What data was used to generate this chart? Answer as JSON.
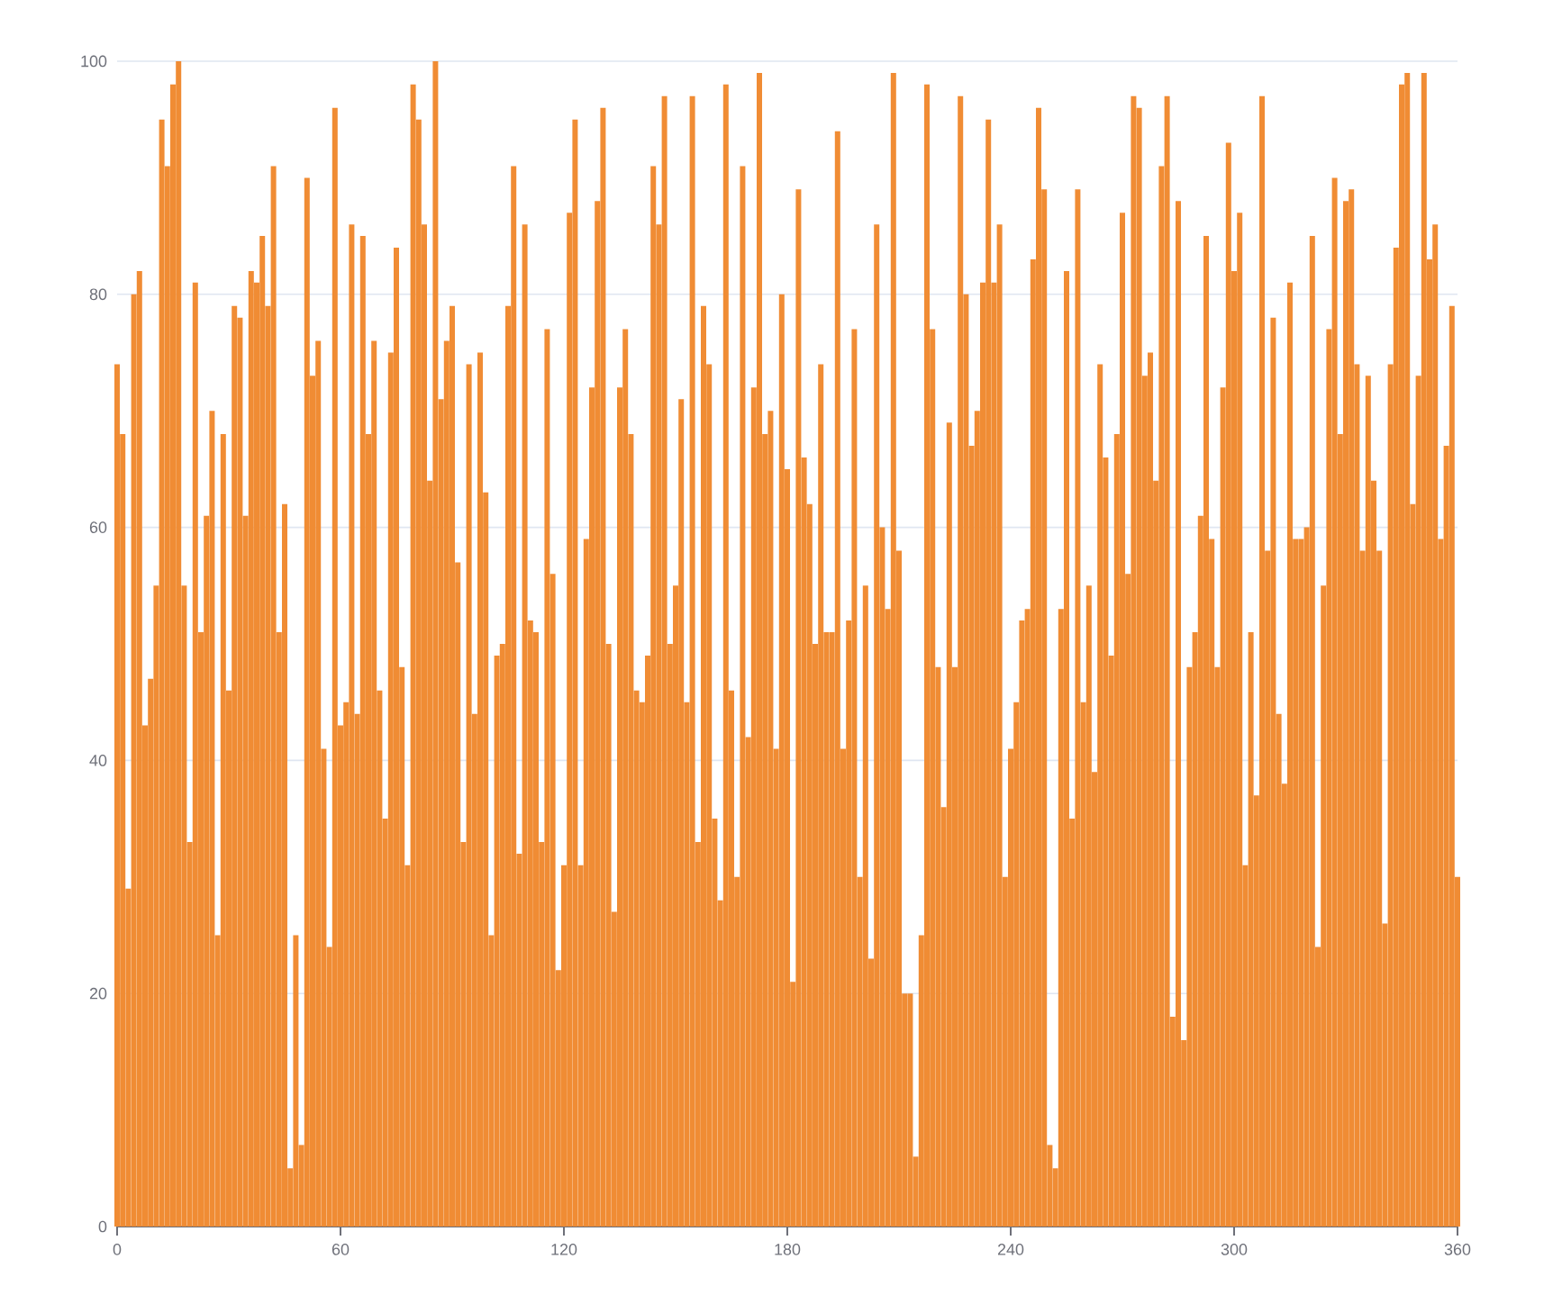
{
  "chart_data": {
    "type": "bar",
    "color": "#f08c34",
    "grid": "y",
    "xlim": [
      0,
      360
    ],
    "xticks": [
      0,
      60,
      120,
      180,
      240,
      300,
      360
    ],
    "ylim": [
      0,
      100
    ],
    "yticks": [
      0,
      20,
      40,
      60,
      80,
      100
    ],
    "x": [
      0,
      1.5,
      3,
      4.5,
      6,
      7.5,
      9,
      10.5,
      12,
      13.5,
      15,
      16.5,
      18,
      19.5,
      21,
      22.5,
      24,
      25.5,
      27,
      28.5,
      30,
      31.5,
      33,
      34.5,
      36,
      37.5,
      39,
      40.5,
      42,
      43.5,
      45,
      46.5,
      48,
      49.5,
      51,
      52.5,
      54,
      55.5,
      57,
      58.5,
      60,
      61.5,
      63,
      64.5,
      66,
      67.5,
      69,
      70.5,
      72,
      73.5,
      75,
      76.5,
      78,
      79.5,
      81,
      82.5,
      84,
      85.5,
      87,
      88.5,
      90,
      91.5,
      93,
      94.5,
      96,
      97.5,
      99,
      100.5,
      102,
      103.5,
      105,
      106.5,
      108,
      109.5,
      111,
      112.5,
      114,
      115.5,
      117,
      118.5,
      120,
      121.5,
      123,
      124.5,
      126,
      127.5,
      129,
      130.5,
      132,
      133.5,
      135,
      136.5,
      138,
      139.5,
      141,
      142.5,
      144,
      145.5,
      147,
      148.5,
      150,
      151.5,
      153,
      154.5,
      156,
      157.5,
      159,
      160.5,
      162,
      163.5,
      165,
      166.5,
      168,
      169.5,
      171,
      172.5,
      174,
      175.5,
      177,
      178.5,
      180,
      181.5,
      183,
      184.5,
      186,
      187.5,
      189,
      190.5,
      192,
      193.5,
      195,
      196.5,
      198,
      199.5,
      201,
      202.5,
      204,
      205.5,
      207,
      208.5,
      210,
      211.5,
      213,
      214.5,
      216,
      217.5,
      219,
      220.5,
      222,
      223.5,
      225,
      226.5,
      228,
      229.5,
      231,
      232.5,
      234,
      235.5,
      237,
      238.5,
      240,
      241.5,
      243,
      244.5,
      246,
      247.5,
      249,
      250.5,
      252,
      253.5,
      255,
      256.5,
      258,
      259.5,
      261,
      262.5,
      264,
      265.5,
      267,
      268.5,
      270,
      271.5,
      273,
      274.5,
      276,
      277.5,
      279,
      280.5,
      282,
      283.5,
      285,
      286.5,
      288,
      289.5,
      291,
      292.5,
      294,
      295.5,
      297,
      298.5,
      300,
      301.5,
      303,
      304.5,
      306,
      307.5,
      309,
      310.5,
      312,
      313.5,
      315,
      316.5,
      318,
      319.5,
      321,
      322.5,
      324,
      325.5,
      327,
      328.5,
      330,
      331.5,
      333,
      334.5,
      336,
      337.5,
      339,
      340.5,
      342,
      343.5,
      345,
      346.5,
      348,
      349.5,
      351,
      352.5,
      354,
      355.5,
      357,
      358.5,
      360
    ],
    "values": [
      74,
      68,
      29,
      80,
      82,
      43,
      47,
      55,
      95,
      91,
      98,
      100,
      55,
      33,
      81,
      51,
      61,
      70,
      25,
      68,
      46,
      79,
      78,
      61,
      82,
      81,
      85,
      79,
      91,
      51,
      62,
      5,
      25,
      7,
      90,
      73,
      76,
      41,
      24,
      96,
      43,
      45,
      86,
      44,
      85,
      68,
      76,
      46,
      35,
      75,
      84,
      48,
      31,
      98,
      95,
      86,
      64,
      100,
      71,
      76,
      79,
      57,
      33,
      74,
      44,
      75,
      63,
      25,
      49,
      50,
      79,
      91,
      32,
      86,
      52,
      51,
      33,
      77,
      56,
      22,
      31,
      87,
      95,
      31,
      59,
      72,
      88,
      96,
      50,
      27,
      72,
      77,
      68,
      46,
      45,
      49,
      91,
      86,
      97,
      50,
      55,
      71,
      45,
      97,
      33,
      79,
      74,
      35,
      28,
      98,
      46,
      30,
      91,
      42,
      72,
      99,
      68,
      70,
      41,
      80,
      65,
      21,
      89,
      66,
      62,
      50,
      74,
      51,
      51,
      94,
      41,
      52,
      77,
      30,
      55,
      23,
      86,
      60,
      53,
      99,
      58,
      20,
      20,
      6,
      25,
      98,
      77,
      48,
      36,
      69,
      48,
      97,
      80,
      67,
      70,
      81,
      95,
      81,
      86,
      30,
      41,
      45,
      52,
      53,
      83,
      96,
      89,
      7,
      5,
      53,
      82,
      35,
      89,
      45,
      55,
      39,
      74,
      66,
      49,
      68,
      87,
      56,
      97,
      96,
      73,
      75,
      64,
      91,
      97,
      18,
      88,
      16,
      48,
      51,
      61,
      85,
      59,
      48,
      72,
      93,
      82,
      87,
      31,
      51,
      37,
      97,
      58,
      78,
      44,
      38,
      81,
      59,
      59,
      60,
      85,
      24,
      55,
      77,
      90,
      68,
      88,
      89,
      74,
      58,
      73,
      64,
      58,
      26,
      74,
      84,
      98,
      99,
      62,
      73,
      99,
      83,
      86,
      59,
      67,
      79,
      30
    ]
  }
}
